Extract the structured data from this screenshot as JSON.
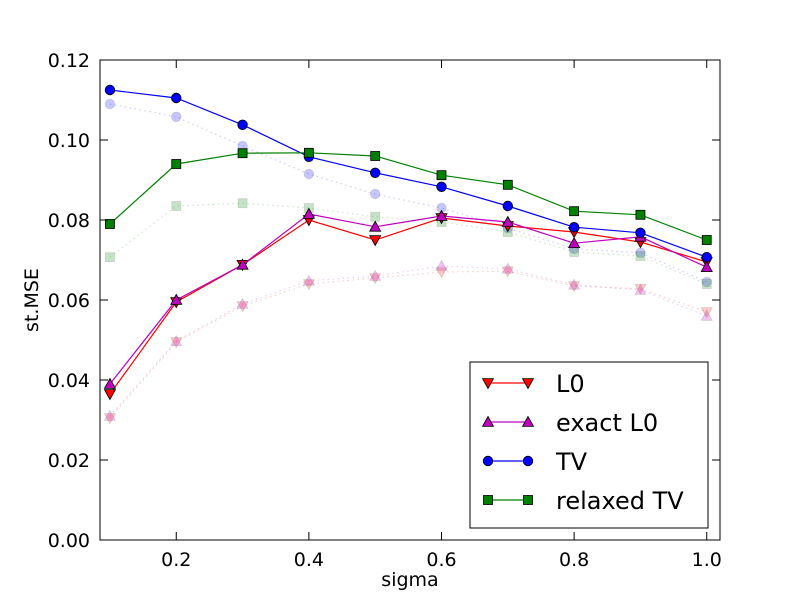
{
  "chart_data": {
    "type": "line",
    "title": "",
    "xlabel": "sigma",
    "ylabel": "st.MSE",
    "xlim": [
      0.085,
      1.02
    ],
    "ylim": [
      0.0,
      0.12
    ],
    "grid": false,
    "legend_position": "bottom-right",
    "x_ticks": [
      0.2,
      0.4,
      0.6,
      0.8,
      1.0
    ],
    "x_tick_labels": [
      "0.2",
      "0.4",
      "0.6",
      "0.8",
      "1.0"
    ],
    "y_ticks": [
      0.0,
      0.02,
      0.04,
      0.06,
      0.08,
      0.1,
      0.12
    ],
    "y_tick_labels": [
      "0.00",
      "0.02",
      "0.04",
      "0.06",
      "0.08",
      "0.10",
      "0.12"
    ],
    "x": [
      0.1,
      0.2,
      0.3,
      0.4,
      0.5,
      0.6,
      0.7,
      0.8,
      0.9,
      1.0
    ],
    "series": [
      {
        "name": "L0",
        "color": "#ff0000",
        "marker": "triangle-down",
        "in_legend": true,
        "values": [
          0.0365,
          0.0595,
          0.0688,
          0.08,
          0.075,
          0.0805,
          0.0785,
          0.077,
          0.0745,
          0.0695
        ]
      },
      {
        "name": "exact L0",
        "color": "#bf00bf",
        "marker": "triangle-up",
        "in_legend": true,
        "values": [
          0.039,
          0.06,
          0.0688,
          0.0815,
          0.0783,
          0.081,
          0.0795,
          0.0742,
          0.0758,
          0.0682
        ]
      },
      {
        "name": "TV",
        "color": "#0000ff",
        "marker": "circle",
        "in_legend": true,
        "values": [
          0.1125,
          0.1105,
          0.1038,
          0.0958,
          0.0918,
          0.0883,
          0.0835,
          0.0782,
          0.0768,
          0.0707
        ]
      },
      {
        "name": "relaxed TV",
        "color": "#008000",
        "marker": "square",
        "in_legend": true,
        "values": [
          0.079,
          0.094,
          0.0967,
          0.0968,
          0.096,
          0.0912,
          0.0888,
          0.0822,
          0.0813,
          0.075
        ]
      },
      {
        "name": "L0 (faded)",
        "color": "#ff0000",
        "marker": "triangle-down",
        "in_legend": false,
        "faded": true,
        "values": [
          0.0305,
          0.0495,
          0.0585,
          0.064,
          0.0655,
          0.067,
          0.0672,
          0.0635,
          0.0628,
          0.057
        ]
      },
      {
        "name": "exact L0 (faded)",
        "color": "#bf00bf",
        "marker": "triangle-up",
        "in_legend": false,
        "faded": true,
        "values": [
          0.031,
          0.0497,
          0.059,
          0.0648,
          0.066,
          0.0685,
          0.0678,
          0.0638,
          0.0625,
          0.056
        ]
      },
      {
        "name": "TV (faded)",
        "color": "#0000ff",
        "marker": "circle",
        "in_legend": false,
        "faded": true,
        "values": [
          0.109,
          0.1058,
          0.0985,
          0.0915,
          0.0865,
          0.083,
          0.078,
          0.0728,
          0.0718,
          0.0645
        ]
      },
      {
        "name": "relaxed TV (faded)",
        "color": "#008000",
        "marker": "square",
        "in_legend": false,
        "faded": true,
        "values": [
          0.0707,
          0.0835,
          0.0842,
          0.083,
          0.0808,
          0.0795,
          0.077,
          0.072,
          0.071,
          0.064
        ]
      }
    ]
  }
}
